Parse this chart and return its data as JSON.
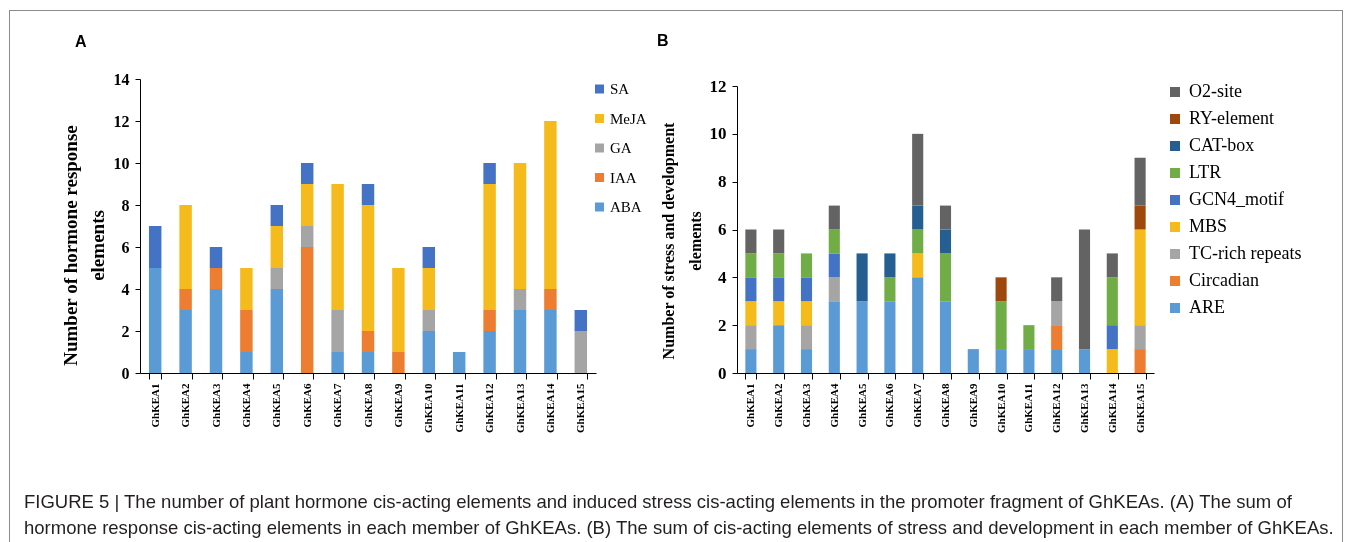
{
  "chart_data": [
    {
      "type": "bar",
      "title": "A",
      "ylabel": "Number of hormone response\nelements",
      "stacked": true,
      "legend": "top right",
      "ylim": [
        0,
        14
      ],
      "yticks": [
        0,
        2,
        4,
        6,
        8,
        10,
        12,
        14
      ],
      "categories": [
        "GhKEA1",
        "GhKEA2",
        "GhKEA3",
        "GhKEA4",
        "GhKEA5",
        "GhKEA6",
        "GhKEA7",
        "GhKEA8",
        "GhKEA9",
        "GhKEA10",
        "GhKEA11",
        "GhKEA12",
        "GhKEA13",
        "GhKEA14",
        "GhKEA15"
      ],
      "series": [
        {
          "name": "ABA",
          "color": "#5b9bd5",
          "values": [
            5,
            3,
            4,
            1,
            4,
            null,
            1,
            1,
            null,
            2,
            1,
            2,
            3,
            3,
            null
          ]
        },
        {
          "name": "IAA",
          "color": "#ed7d31",
          "values": [
            null,
            1,
            1,
            2,
            null,
            6,
            null,
            1,
            1,
            null,
            null,
            1,
            null,
            1,
            null
          ]
        },
        {
          "name": "GA",
          "color": "#a5a5a5",
          "values": [
            null,
            null,
            null,
            null,
            1,
            1,
            2,
            null,
            null,
            1,
            null,
            null,
            1,
            null,
            2
          ]
        },
        {
          "name": "MeJA",
          "color": "#f5bb1c",
          "values": [
            null,
            4,
            null,
            2,
            2,
            2,
            6,
            6,
            4,
            2,
            null,
            6,
            6,
            8,
            null
          ]
        },
        {
          "name": "SA",
          "color": "#4472c4",
          "values": [
            2,
            null,
            1,
            null,
            1,
            1,
            null,
            1,
            null,
            1,
            null,
            1,
            null,
            null,
            1
          ]
        }
      ],
      "annotations": [
        "FIGURE 5 | The number of plant hormone cis-acting elements and induced stress cis-acting elements in the promoter fragment of GhKEAs. (A) The sum of hormone response cis-acting elements in each member of GhKEAs. (B) The sum of cis-acting elements of stress and development in each member of GhKEAs."
      ]
    },
    {
      "type": "bar",
      "title": "B",
      "ylabel": "Number of stress and development\nelements",
      "stacked": true,
      "legend": "right",
      "ylim": [
        0,
        12
      ],
      "yticks": [
        0,
        2,
        4,
        6,
        8,
        10,
        12
      ],
      "categories": [
        "GhKEA1",
        "GhKEA2",
        "GhKEA3",
        "GhKEA4",
        "GhKEA5",
        "GhKEA6",
        "GhKEA7",
        "GhKEA8",
        "GhKEA9",
        "GhKEA10",
        "GhKEA11",
        "GhKEA12",
        "GhKEA13",
        "GhKEA14",
        "GhKEA15"
      ],
      "series": [
        {
          "name": "ARE",
          "color": "#5b9bd5",
          "values": [
            1,
            2,
            1,
            3,
            3,
            3,
            4,
            3,
            1,
            1,
            1,
            1,
            1,
            null,
            null
          ]
        },
        {
          "name": "Circadian",
          "color": "#ed7d31",
          "values": [
            null,
            null,
            null,
            null,
            null,
            null,
            null,
            null,
            null,
            null,
            null,
            1,
            null,
            null,
            1
          ]
        },
        {
          "name": "TC-rich repeats",
          "color": "#a5a5a5",
          "values": [
            1,
            null,
            1,
            1,
            null,
            null,
            null,
            null,
            null,
            null,
            null,
            1,
            null,
            null,
            1
          ]
        },
        {
          "name": "MBS",
          "color": "#f5bb1c",
          "values": [
            1,
            1,
            1,
            null,
            null,
            null,
            1,
            null,
            null,
            null,
            null,
            null,
            null,
            1,
            4
          ]
        },
        {
          "name": "GCN4_motif",
          "color": "#4472c4",
          "values": [
            1,
            1,
            1,
            1,
            null,
            null,
            null,
            null,
            null,
            null,
            null,
            null,
            null,
            1,
            null
          ]
        },
        {
          "name": "LTR",
          "color": "#70ad47",
          "values": [
            1,
            1,
            1,
            1,
            null,
            1,
            1,
            2,
            null,
            2,
            1,
            null,
            null,
            2,
            null
          ]
        },
        {
          "name": "CAT-box",
          "color": "#255e91",
          "values": [
            null,
            null,
            null,
            null,
            2,
            1,
            1,
            1,
            null,
            null,
            null,
            null,
            null,
            null,
            null
          ]
        },
        {
          "name": "RY-element",
          "color": "#9e480e",
          "values": [
            null,
            null,
            null,
            null,
            null,
            null,
            null,
            null,
            null,
            1,
            null,
            null,
            null,
            null,
            1
          ]
        },
        {
          "name": "O2-site",
          "color": "#636363",
          "values": [
            1,
            1,
            null,
            1,
            null,
            null,
            3,
            1,
            null,
            null,
            null,
            1,
            5,
            1,
            2
          ]
        }
      ]
    }
  ]
}
